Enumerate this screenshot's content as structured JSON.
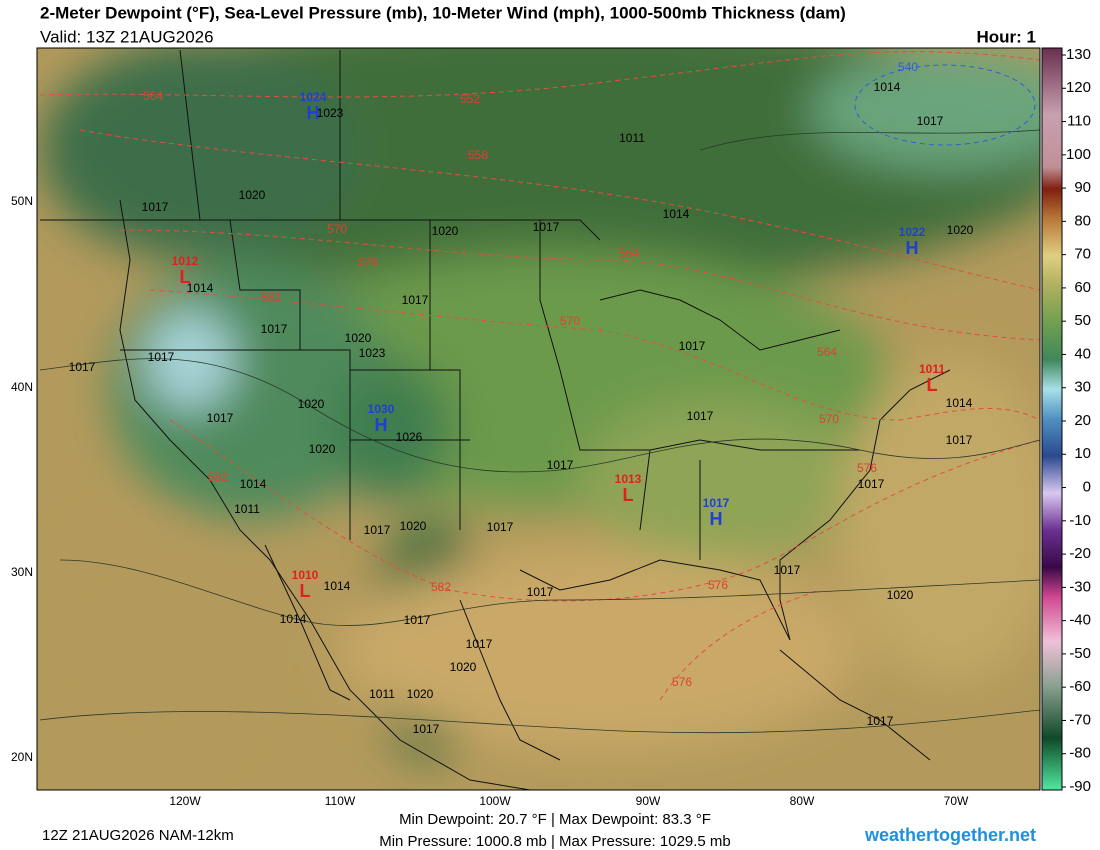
{
  "header": {
    "title": "2-Meter Dewpoint (°F), Sea-Level Pressure (mb), 10-Meter Wind (mph), 1000-500mb Thickness (dam)",
    "valid": "Valid: 13Z 21AUG2026",
    "hour": "Hour: 1"
  },
  "colorbar": {
    "ticks": [
      130,
      120,
      110,
      100,
      90,
      80,
      70,
      60,
      50,
      40,
      30,
      20,
      10,
      0,
      -10,
      -20,
      -30,
      -40,
      -50,
      -60,
      -70,
      -80,
      -90
    ]
  },
  "map": {
    "latitude_labels": [
      "50N",
      "40N",
      "30N",
      "20N"
    ],
    "longitude_labels": [
      "120W",
      "110W",
      "100W",
      "90W",
      "80W",
      "70W"
    ],
    "pressure_centers": [
      {
        "type": "H",
        "value": "1024"
      },
      {
        "type": "H",
        "value": "1022"
      },
      {
        "type": "H",
        "value": "1030"
      },
      {
        "type": "H",
        "value": "1017"
      },
      {
        "type": "L",
        "value": "1012"
      },
      {
        "type": "L",
        "value": "1013"
      },
      {
        "type": "L",
        "value": "1010"
      },
      {
        "type": "L",
        "value": "1011"
      }
    ],
    "isobar_labels": [
      "1023",
      "1014",
      "1017",
      "1011",
      "1020",
      "1017",
      "1014",
      "1017",
      "1020",
      "1020",
      "1014",
      "1017",
      "1017",
      "1020",
      "1023",
      "1017",
      "1017",
      "1017",
      "1020",
      "1017",
      "1026",
      "1020",
      "1017",
      "1017",
      "1014",
      "1011",
      "1017",
      "1020",
      "1017",
      "1014",
      "1014",
      "1017",
      "1017",
      "1020",
      "1017",
      "1017",
      "1020",
      "1011",
      "1020",
      "1017",
      "1017",
      "1014",
      "1017",
      "1017"
    ],
    "thickness_labels": [
      "564",
      "552",
      "558",
      "570",
      "576",
      "564",
      "582",
      "570",
      "564",
      "570",
      "576",
      "582",
      "582",
      "576",
      "576",
      "540"
    ]
  },
  "footer": {
    "run": "12Z 21AUG2026 NAM-12km",
    "dewpoint_range": "Min Dewpoint:  20.7 °F | Max Dewpoint:  83.3 °F",
    "pressure_range": "Min Pressure: 1000.8 mb | Max Pressure: 1029.5 mb",
    "site": "weathertogether.net"
  }
}
